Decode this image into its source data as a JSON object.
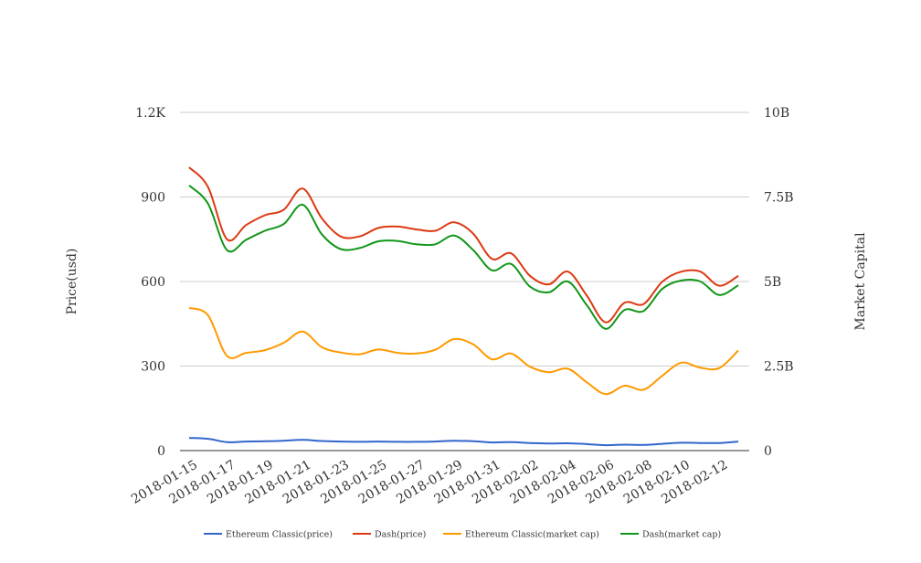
{
  "chart_data": {
    "type": "line",
    "title": "",
    "y_left_label": "Price(usd)",
    "y_right_label": "Market Capital",
    "y_left_ticks": [
      "0",
      "300",
      "600",
      "900",
      "1.2K"
    ],
    "y_right_ticks": [
      "0",
      "2.5B",
      "5B",
      "7.5B",
      "10B"
    ],
    "y_left_range": [
      0,
      1200
    ],
    "y_right_range": [
      0,
      10000000000
    ],
    "x_tick_labels": [
      "2018-01-15",
      "2018-01-17",
      "2018-01-19",
      "2018-01-21",
      "2018-01-23",
      "2018-01-25",
      "2018-01-27",
      "2018-01-29",
      "2018-01-31",
      "2018-02-02",
      "2018-02-04",
      "2018-02-06",
      "2018-02-08",
      "2018-02-10",
      "2018-02-12"
    ],
    "dates": [
      "2018-01-15",
      "2018-01-16",
      "2018-01-17",
      "2018-01-18",
      "2018-01-19",
      "2018-01-20",
      "2018-01-21",
      "2018-01-22",
      "2018-01-23",
      "2018-01-24",
      "2018-01-25",
      "2018-01-26",
      "2018-01-27",
      "2018-01-28",
      "2018-01-29",
      "2018-01-30",
      "2018-01-31",
      "2018-02-01",
      "2018-02-02",
      "2018-02-03",
      "2018-02-04",
      "2018-02-05",
      "2018-02-06",
      "2018-02-07",
      "2018-02-08",
      "2018-02-09",
      "2018-02-10",
      "2018-02-11",
      "2018-02-12",
      "2018-02-13"
    ],
    "grid": true,
    "legend_position": "bottom",
    "series": [
      {
        "name": "Ethereum Classic(price)",
        "axis": "left",
        "color": "#3366cc",
        "values": [
          45,
          42,
          30,
          32,
          33,
          35,
          38,
          34,
          32,
          31,
          32,
          31,
          31,
          32,
          35,
          33,
          29,
          30,
          27,
          25,
          26,
          23,
          19,
          21,
          20,
          24,
          28,
          27,
          27,
          32
        ]
      },
      {
        "name": "Dash(price)",
        "axis": "left",
        "color": "#dc3912",
        "values": [
          1005,
          935,
          750,
          800,
          835,
          855,
          930,
          825,
          760,
          760,
          790,
          795,
          785,
          780,
          810,
          770,
          680,
          700,
          620,
          590,
          635,
          550,
          455,
          525,
          520,
          600,
          635,
          635,
          585,
          620
        ]
      },
      {
        "name": "Ethereum Classic(market cap)",
        "axis": "right",
        "color": "#ff9900",
        "values": [
          4220000000,
          4000000000,
          2800000000,
          2890000000,
          2970000000,
          3190000000,
          3520000000,
          3060000000,
          2900000000,
          2850000000,
          2990000000,
          2890000000,
          2870000000,
          2980000000,
          3300000000,
          3140000000,
          2700000000,
          2870000000,
          2480000000,
          2320000000,
          2420000000,
          2020000000,
          1670000000,
          1920000000,
          1800000000,
          2220000000,
          2600000000,
          2450000000,
          2440000000,
          2960000000
        ]
      },
      {
        "name": "Dash(market cap)",
        "axis": "right",
        "color": "#109618",
        "values": [
          7840000000,
          7300000000,
          5930000000,
          6230000000,
          6500000000,
          6700000000,
          7270000000,
          6400000000,
          5960000000,
          5990000000,
          6190000000,
          6200000000,
          6100000000,
          6100000000,
          6360000000,
          5930000000,
          5330000000,
          5520000000,
          4850000000,
          4680000000,
          5000000000,
          4300000000,
          3600000000,
          4160000000,
          4130000000,
          4790000000,
          5030000000,
          5000000000,
          4600000000,
          4890000000
        ]
      }
    ]
  }
}
